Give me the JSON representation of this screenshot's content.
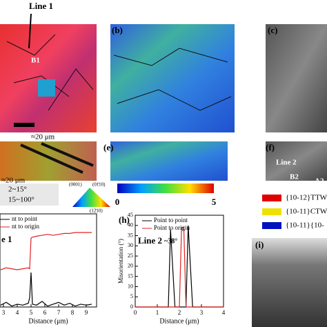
{
  "panels": {
    "a": {
      "annotation": "Line 1",
      "grain": "B1",
      "scale": "≈20 μm"
    },
    "b": {
      "label": "(b)"
    },
    "c": {
      "label": "(c)"
    },
    "d": {
      "scale": "≈20 μm"
    },
    "e": {
      "label": "(e)"
    },
    "f": {
      "label": "(f)",
      "line": "Line 2",
      "grain_b": "B2",
      "grain_a": "A2"
    },
    "boundaries": [
      "2~15°",
      "15~100°"
    ],
    "ipf": [
      "(0001)",
      "(01̄10)",
      "(12̄10)"
    ],
    "colorbar": {
      "min": "0",
      "max": "5"
    },
    "twins": [
      {
        "name": "{10-12}TTW",
        "color": "#e00000"
      },
      {
        "name": "{10-11}CTW",
        "color": "#f0e000"
      },
      {
        "name": "{10-11}{10-",
        "color": "#0010c0"
      }
    ],
    "i": {
      "label": "(i)"
    }
  },
  "chart_data": [
    {
      "type": "line",
      "annotation": "e 1",
      "xlabel": "Distance (μm)",
      "x": [
        2.8,
        3.2,
        3.6,
        4,
        4.4,
        4.8,
        4.9,
        5,
        5.1,
        5.4,
        5.8,
        6.2,
        6.6,
        7,
        7.4,
        7.8,
        8.2,
        8.6,
        9,
        9.4
      ],
      "series": [
        {
          "name": "nt to point",
          "color": "#000000",
          "values": [
            2,
            5,
            1,
            3,
            2,
            4,
            10,
            37,
            3,
            2,
            6,
            1,
            3,
            5,
            2,
            4,
            1,
            3,
            2,
            3
          ]
        },
        {
          "name": "nt to origin",
          "color": "#e02020",
          "values": [
            40,
            42,
            41,
            40,
            41,
            42,
            41,
            74,
            75,
            76,
            77,
            78,
            77,
            78,
            79,
            79,
            80,
            80,
            80,
            80
          ]
        }
      ],
      "xlim": [
        2.75,
        9.75
      ],
      "xticks": [
        3,
        4,
        5,
        6,
        7,
        8,
        9
      ],
      "ylim": [
        0,
        100
      ]
    },
    {
      "type": "line",
      "title": "(h)",
      "annotation": "Line 2",
      "angle": "~38°",
      "xlabel": "Distance (μm)",
      "ylabel": "Misorientation (°)",
      "x": [
        0,
        0.5,
        1,
        1.3,
        1.5,
        1.6,
        1.8,
        2,
        2.1,
        2.2,
        2.3,
        2.4,
        2.6,
        3,
        3.5,
        4
      ],
      "series": [
        {
          "name": "Point to point",
          "color": "#000000",
          "values": [
            0,
            0,
            0,
            0,
            0,
            38,
            0,
            0,
            0,
            0,
            0,
            40,
            0,
            0,
            0,
            0
          ]
        },
        {
          "name": "Point to origin",
          "color": "#e02020",
          "values": [
            0,
            0,
            0,
            0,
            0,
            0,
            0,
            0,
            39,
            39,
            0,
            0,
            0,
            0,
            0,
            0
          ]
        }
      ],
      "xlim": [
        0,
        4
      ],
      "xticks": [
        0,
        1,
        2,
        3,
        4
      ],
      "ylim": [
        0,
        45
      ],
      "yticks": [
        0,
        5,
        10,
        15,
        20,
        25,
        30,
        35,
        40,
        45
      ]
    }
  ]
}
